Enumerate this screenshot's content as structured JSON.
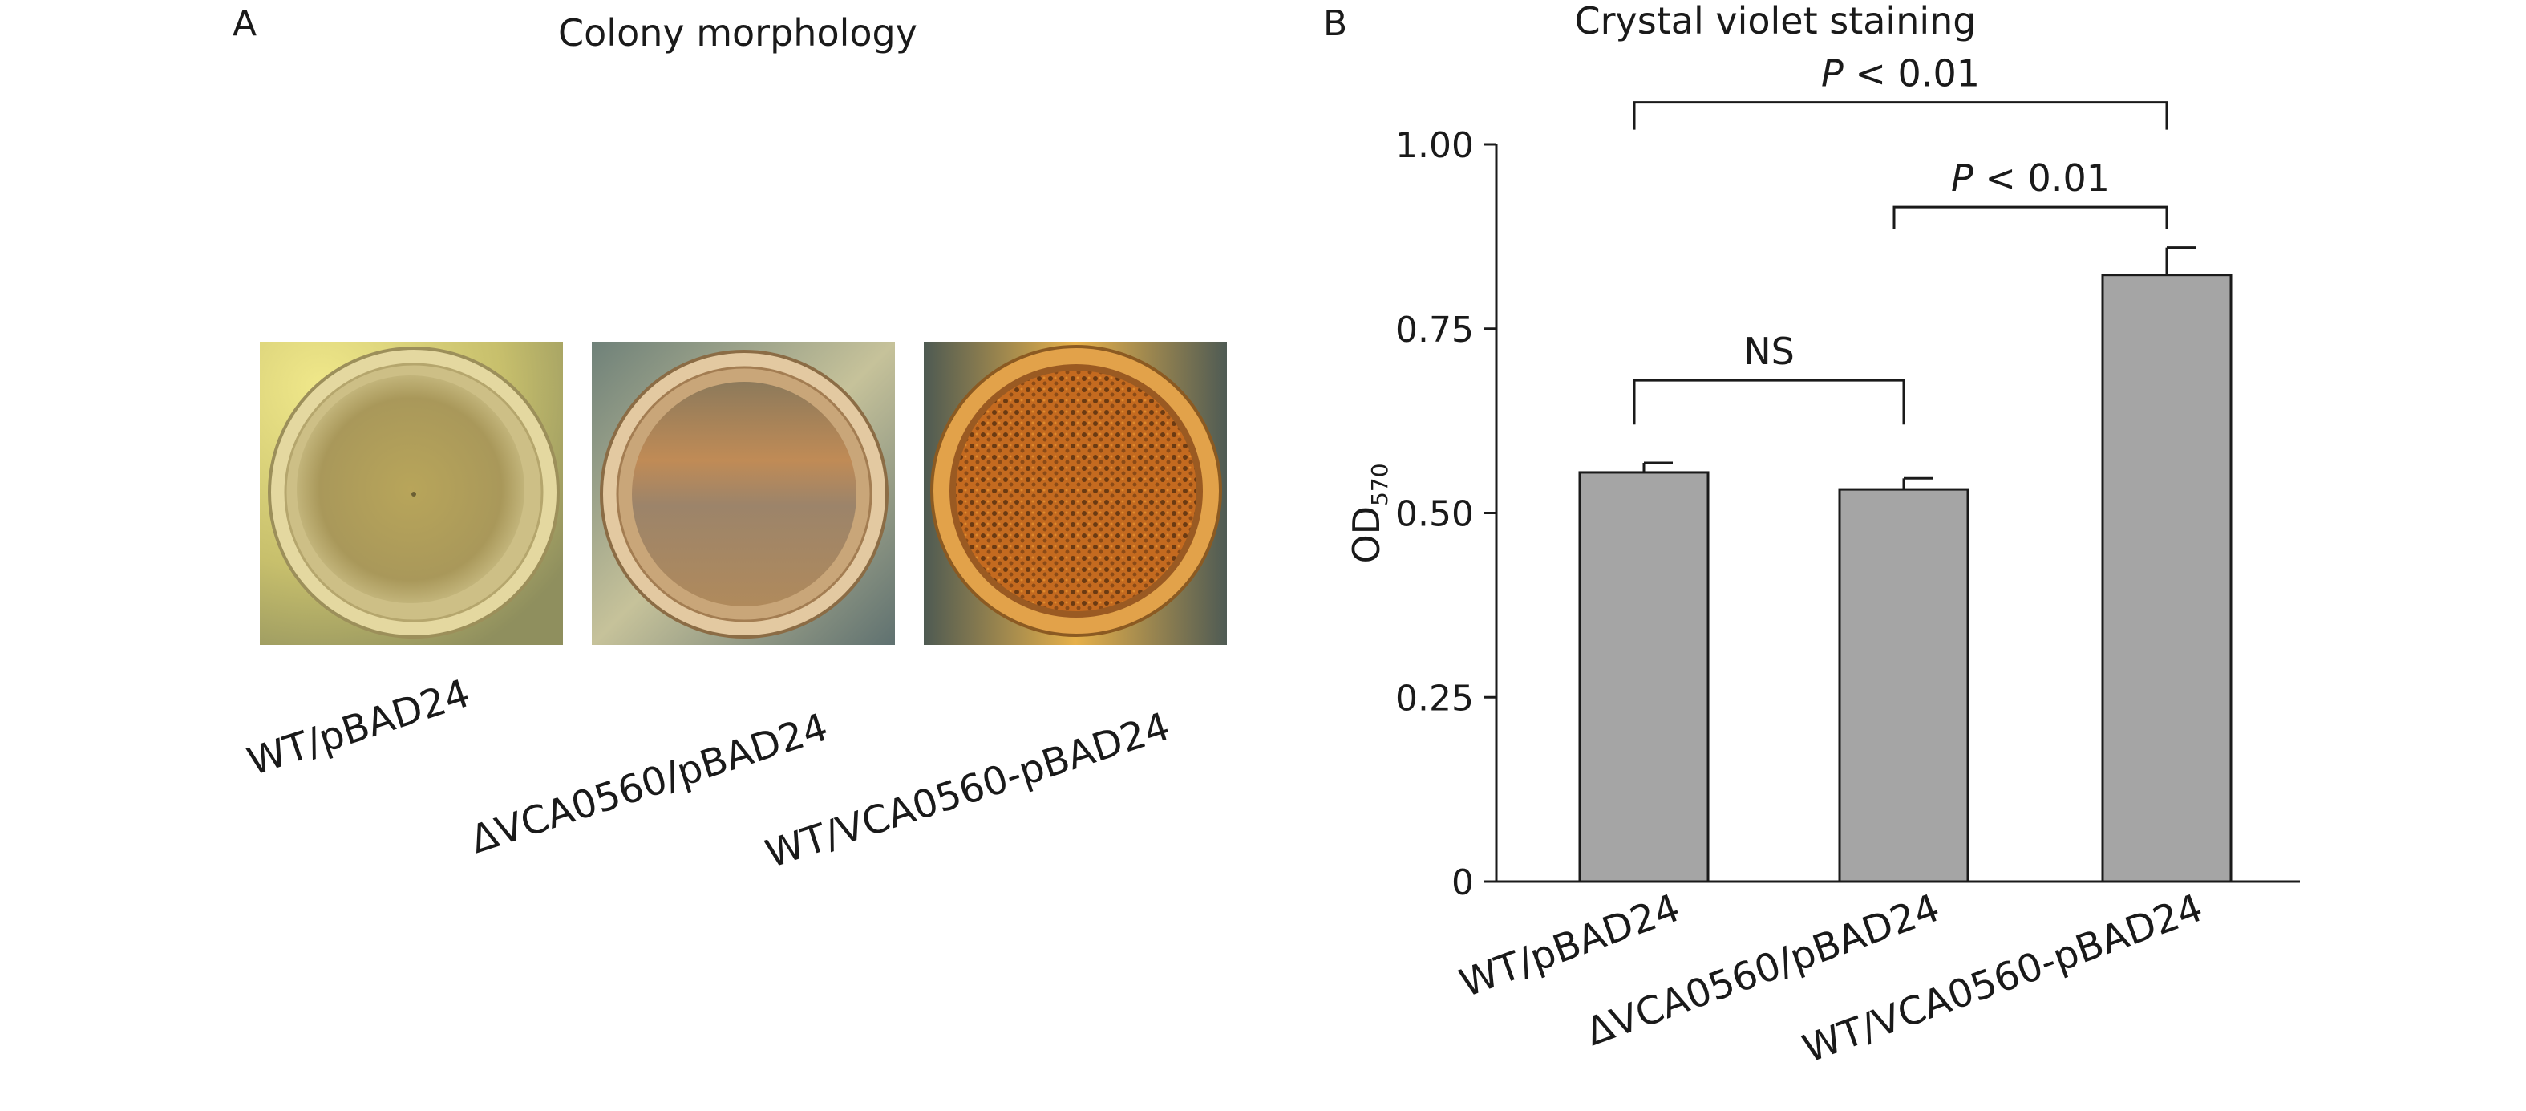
{
  "panelA": {
    "letter": "A",
    "title": "Colony morphology",
    "colonies": [
      {
        "label": "WT/pBAD24",
        "image": "colony-smooth-pale"
      },
      {
        "label": "ΔVCA0560/pBAD24",
        "image": "colony-smooth-tan"
      },
      {
        "label": "WT/VCA0560-pBAD24",
        "image": "colony-wrinkled-dark"
      }
    ]
  },
  "panelB": {
    "letter": "B"
  },
  "chart_data": {
    "type": "bar",
    "title": "Crystal violet staining",
    "ylabel": "OD",
    "ylabel_subscript": "570",
    "xlabel": "",
    "ylim": [
      0,
      1.0
    ],
    "yticks": [
      0,
      0.25,
      0.5,
      0.75,
      1.0
    ],
    "ytick_labels": [
      "0",
      "0.25",
      "0.50",
      "0.75",
      "1.00"
    ],
    "categories": [
      "WT/pBAD24",
      "ΔVCA0560/pBAD24",
      "WT/VCA0560-pBAD24"
    ],
    "values": [
      0.555,
      0.532,
      0.823
    ],
    "errors": [
      0.013,
      0.015,
      0.037
    ],
    "bar_color": "#a5a5a5",
    "grid": false,
    "annotations": [
      {
        "from": 1,
        "to": 2,
        "text": "NS"
      },
      {
        "from": 2,
        "to": 3,
        "text": "P < 0.01"
      },
      {
        "from": 1,
        "to": 3,
        "text": "P < 0.01"
      }
    ]
  }
}
